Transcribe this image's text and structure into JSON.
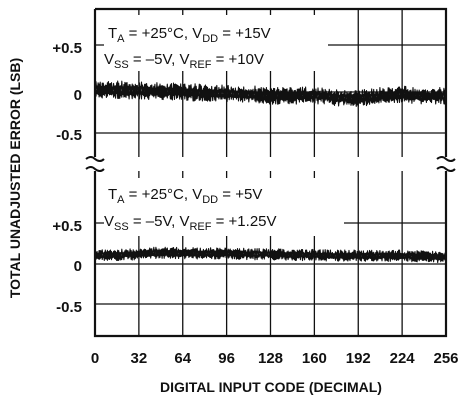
{
  "chart_data": {
    "type": "line",
    "xlabel": "DIGITAL INPUT CODE (DECIMAL)",
    "ylabel": "TOTAL UNADJUSTED ERROR (LSB)",
    "x_ticks": [
      "0",
      "32",
      "64",
      "96",
      "128",
      "160",
      "192",
      "224",
      "256"
    ],
    "xlim": [
      0,
      256
    ],
    "grid": true,
    "panels": [
      {
        "id": "top",
        "ylim": [
          -0.8,
          0.8
        ],
        "y_ticks": [
          "+0.5",
          "0",
          "-0.5"
        ],
        "y_tick_values": [
          0.5,
          0,
          -0.5
        ],
        "annotation": {
          "line1": {
            "t": "T",
            "t_sub": "A",
            "t_rest": " = +25°C, V",
            "v_sub": "DD",
            "v_rest": " = +15V"
          },
          "line2": {
            "a": "V",
            "a_sub": "SS",
            "a_rest": " = –5V,  V",
            "b_sub": "REF",
            "b_rest": " = +10V"
          }
        },
        "series": [
          {
            "x": [
              0,
              16,
              32,
              48,
              64,
              80,
              96,
              112,
              128,
              144,
              160,
              176,
              192,
              208,
              224,
              240,
              256
            ],
            "center": [
              0.02,
              0.02,
              0.01,
              0.0,
              0.0,
              -0.02,
              -0.02,
              -0.03,
              -0.05,
              -0.05,
              -0.04,
              -0.07,
              -0.08,
              -0.05,
              -0.03,
              -0.05,
              -0.05
            ],
            "amplitude": 0.1
          }
        ]
      },
      {
        "id": "bottom",
        "ylim": [
          -0.8,
          0.8
        ],
        "y_ticks": [
          "+0.5",
          "0",
          "-0.5"
        ],
        "y_tick_values": [
          0.5,
          0,
          -0.5
        ],
        "annotation": {
          "line1": {
            "t": "T",
            "t_sub": "A",
            "t_rest": " = +25°C, V",
            "v_sub": "DD",
            "v_rest": " = +5V"
          },
          "line2": {
            "a": "V",
            "a_sub": "SS",
            "a_rest": " = –5V,  V",
            "b_sub": "REF",
            "b_rest": " = +1.25V"
          }
        },
        "series": [
          {
            "x": [
              0,
              16,
              32,
              48,
              64,
              80,
              96,
              112,
              128,
              144,
              160,
              176,
              192,
              208,
              224,
              240,
              256
            ],
            "center": [
              0.1,
              0.11,
              0.12,
              0.14,
              0.13,
              0.13,
              0.13,
              0.12,
              0.12,
              0.11,
              0.11,
              0.1,
              0.1,
              0.1,
              0.1,
              0.09,
              0.08
            ],
            "amplitude": 0.07
          }
        ]
      }
    ]
  }
}
